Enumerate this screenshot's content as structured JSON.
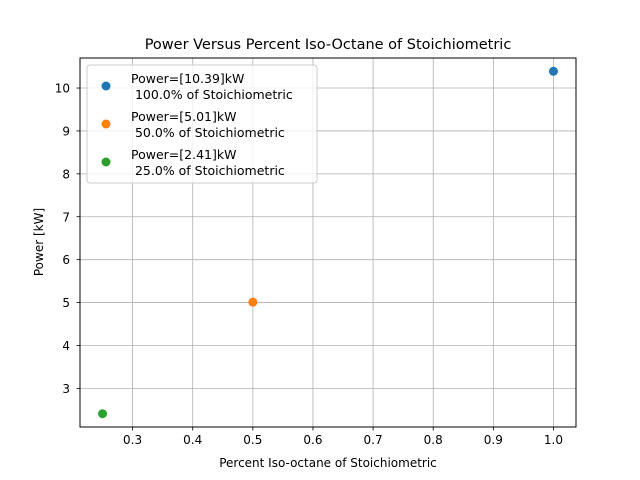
{
  "chart_data": {
    "type": "scatter",
    "title": "Power Versus Percent Iso-Octane of Stoichiometric",
    "xlabel": "Percent Iso-octane of Stoichiometric",
    "ylabel": "Power [kW]",
    "xlim": [
      0.2125,
      1.0375
    ],
    "ylim": [
      2.1,
      10.7
    ],
    "xticks": [
      "0.3",
      "0.4",
      "0.5",
      "0.6",
      "0.7",
      "0.8",
      "0.9",
      "1.0"
    ],
    "yticks": [
      "3",
      "4",
      "5",
      "6",
      "7",
      "8",
      "9",
      "10"
    ],
    "grid": true,
    "legend_position": "top-left",
    "series": [
      {
        "name": "Power=[10.39]kW\n 100.0% of Stoichiometric",
        "x": [
          1.0
        ],
        "y": [
          10.39
        ],
        "color": "#1f77b4"
      },
      {
        "name": "Power=[5.01]kW\n 50.0% of Stoichiometric",
        "x": [
          0.5
        ],
        "y": [
          5.01
        ],
        "color": "#ff7f0e"
      },
      {
        "name": "Power=[2.41]kW\n 25.0% of Stoichiometric",
        "x": [
          0.25
        ],
        "y": [
          2.41
        ],
        "color": "#2ca02c"
      }
    ]
  }
}
